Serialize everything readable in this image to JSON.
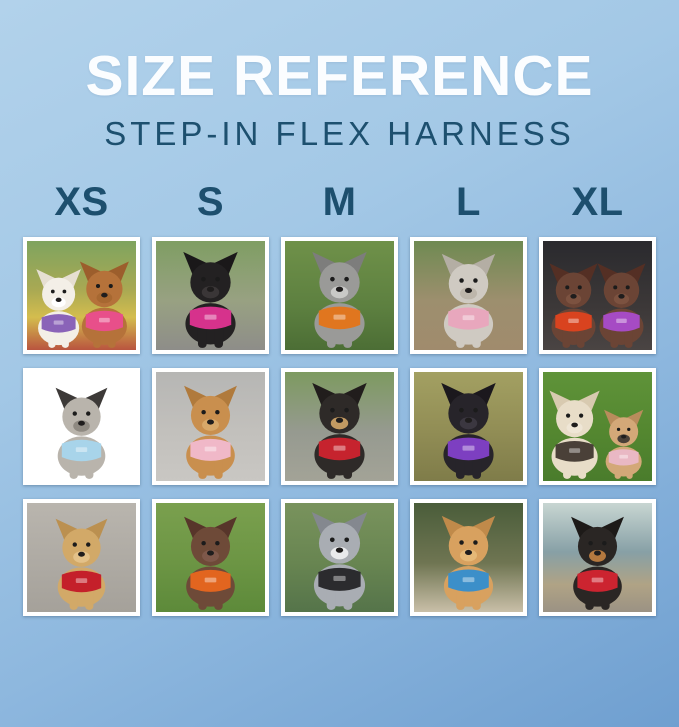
{
  "page": {
    "title": "SIZE REFERENCE",
    "subtitle": "STEP-IN FLEX HARNESS"
  },
  "sizes": [
    "XS",
    "S",
    "M",
    "L",
    "XL"
  ],
  "colors": {
    "background_top": "#b2d2eb",
    "background_bottom": "#6f9fd0",
    "title_text": "#fbfdff",
    "subtitle_text": "#1d506f",
    "size_label_text": "#1d4f6e",
    "photo_frame": "#ffffff"
  },
  "grid": {
    "rows": [
      [
        {
          "size": "XS",
          "photo": "white bichon and brown mini poodle in pink harness on colorful blanket",
          "scene": [
            "#7fa45f 0%",
            "#a9a953 45%",
            "#d4bd4e 70%",
            "#b9543f 100%"
          ],
          "dogs": [
            {
              "fur": "#f3efe7",
              "ears": "#e6dfd2",
              "muzzle": "#ffffff",
              "harness": "#8a63b8",
              "x": -21,
              "scale": 0.82
            },
            {
              "fur": "#b5723a",
              "ears": "#9c5e2c",
              "muzzle": "#a76831",
              "harness": "#e84f8a",
              "x": 21,
              "scale": 0.9
            }
          ]
        },
        {
          "size": "S",
          "photo": "black min-pin wearing magenta pink harness standing on rock",
          "scene": [
            "#7f9e63 0%",
            "#98a182 55%",
            "#8e8d89 100%"
          ],
          "dogs": [
            {
              "fur": "#232122",
              "ears": "#1a1819",
              "muzzle": "#3a3637",
              "harness": "#d6328c",
              "x": 0,
              "scale": 1
            }
          ]
        },
        {
          "size": "M",
          "photo": "gray merle puppy wearing orange harness on green grass",
          "scene": [
            "#6f9149 0%",
            "#5d8040 60%",
            "#4c6e35 100%"
          ],
          "dogs": [
            {
              "fur": "#9a9a98",
              "ears": "#7d7d7c",
              "muzzle": "#c9c9c7",
              "harness": "#e0761f",
              "x": 0,
              "scale": 1
            }
          ]
        },
        {
          "size": "L",
          "photo": "whippet wearing light pink harness sitting on dirt path",
          "scene": [
            "#6f8a52 0%",
            "#9d8f6e 55%",
            "#a08b6d 100%"
          ],
          "dogs": [
            {
              "fur": "#cfcac2",
              "ears": "#b4aea4",
              "muzzle": "#bdb6ab",
              "harness": "#e8a7bd",
              "x": 0,
              "scale": 0.98
            }
          ]
        },
        {
          "size": "XL",
          "photo": "two german shorthaired pointers in orange-red and purple harnesses",
          "scene": [
            "#2a2a2e 0%",
            "#3c3838 60%",
            "#4a4443 100%"
          ],
          "dogs": [
            {
              "fur": "#6b4435",
              "ears": "#542f24",
              "muzzle": "#7c5240",
              "harness": "#d9431f",
              "x": -22,
              "scale": 0.88
            },
            {
              "fur": "#6b4435",
              "ears": "#542f24",
              "muzzle": "#7c5240",
              "harness": "#a64bc4",
              "x": 22,
              "scale": 0.88
            }
          ]
        }
      ],
      [
        {
          "size": "XS",
          "photo": "gray and white shih tzu in light blue harness lying on white bed",
          "scene": [
            "#e8e2d6 0%",
            "#efecе4 50%",
            "#f3f1ec 100%"
          ],
          "dogs": [
            {
              "fur": "#b9b4ac",
              "ears": "#3d3a38",
              "muzzle": "#8f8a82",
              "harness": "#a8d4ea",
              "x": 0,
              "scale": 0.95
            }
          ]
        },
        {
          "size": "S",
          "photo": "golden retriever puppy in light pink harness sitting on pavement",
          "scene": [
            "#b6b6b4 0%",
            "#c2c0bc 55%",
            "#c9c7c3 100%"
          ],
          "dogs": [
            {
              "fur": "#c98f4e",
              "ears": "#b07a3c",
              "muzzle": "#d8a869",
              "harness": "#f0b8c8",
              "x": 0,
              "scale": 0.97
            }
          ]
        },
        {
          "size": "M",
          "photo": "black and tan dog in red harness in front of park bench",
          "scene": [
            "#7d9a60 0%",
            "#969a90 55%",
            "#a3a397 100%"
          ],
          "dogs": [
            {
              "fur": "#2e2a28",
              "ears": "#211d1c",
              "muzzle": "#c29a62",
              "harness": "#c6232e",
              "x": 0,
              "scale": 1
            }
          ]
        },
        {
          "size": "L",
          "photo": "black lab puppy in purple harness on autumn leaves",
          "scene": [
            "#a3a062 0%",
            "#918d55 55%",
            "#7f7c49 100%"
          ],
          "dogs": [
            {
              "fur": "#27242a",
              "ears": "#1b181d",
              "muzzle": "#3b3740",
              "harness": "#7d3fc1",
              "x": 0,
              "scale": 1
            }
          ]
        },
        {
          "size": "XL",
          "photo": "cream doodle in dark harness and fawn french bulldog in pink harness on grass",
          "scene": [
            "#5f9339 0%",
            "#548730 55%",
            "#4a7c2c 100%"
          ],
          "dogs": [
            {
              "fur": "#e8ddc8",
              "ears": "#d8cab0",
              "muzzle": "#efe6d6",
              "harness": "#4a4038",
              "x": -21,
              "scale": 0.92
            },
            {
              "fur": "#d3a878",
              "ears": "#b98c5c",
              "muzzle": "#4a4038",
              "harness": "#e9b8c4",
              "x": 24,
              "scale": 0.72
            }
          ]
        }
      ],
      [
        {
          "size": "XS",
          "photo": "tan yorkie mix in red harness on gray shag carpet",
          "scene": [
            "#b9b5ae 0%",
            "#aeaaa3 55%",
            "#a5a19a 100%"
          ],
          "dogs": [
            {
              "fur": "#d2a968",
              "ears": "#bb9050",
              "muzzle": "#e3c189",
              "harness": "#c4202a",
              "x": 0,
              "scale": 0.95
            }
          ]
        },
        {
          "size": "S",
          "photo": "german shorthaired pointer puppy in orange harness lying on grass",
          "scene": [
            "#7aa04e 0%",
            "#6c9544 55%",
            "#5d8a3a 100%"
          ],
          "dogs": [
            {
              "fur": "#6e4a38",
              "ears": "#57352a",
              "muzzle": "#7e584a",
              "harness": "#e2651f",
              "x": 0,
              "scale": 0.97
            }
          ]
        },
        {
          "size": "M",
          "photo": "blue merle border collie in black harness",
          "scene": [
            "#79935d 0%",
            "#688551 55%",
            "#55744a 100%"
          ],
          "dogs": [
            {
              "fur": "#a9adb3",
              "ears": "#84888f",
              "muzzle": "#e9eaec",
              "harness": "#2b2b2e",
              "x": 0,
              "scale": 1.02
            }
          ]
        },
        {
          "size": "L",
          "photo": "apricot doodle in blue harness sitting on stone by hedge",
          "scene": [
            "#4a5d3a 0%",
            "#6f7552 55%",
            "#c9bfa8 100%"
          ],
          "dogs": [
            {
              "fur": "#d8a15f",
              "ears": "#c08a4a",
              "muzzle": "#e5b877",
              "harness": "#3c8fc9",
              "x": 0,
              "scale": 0.98
            }
          ]
        },
        {
          "size": "XL",
          "photo": "black and tan min-pin in red harness with leash on mountain overlook",
          "scene": [
            "#c8d6d2 0%",
            "#87a0a6 45%",
            "#b0a385 75%",
            "#9b9284 100%"
          ],
          "dogs": [
            {
              "fur": "#2a2624",
              "ears": "#1d1a18",
              "muzzle": "#b5793f",
              "harness": "#cc2430",
              "x": 0,
              "scale": 0.97
            }
          ]
        }
      ]
    ]
  }
}
